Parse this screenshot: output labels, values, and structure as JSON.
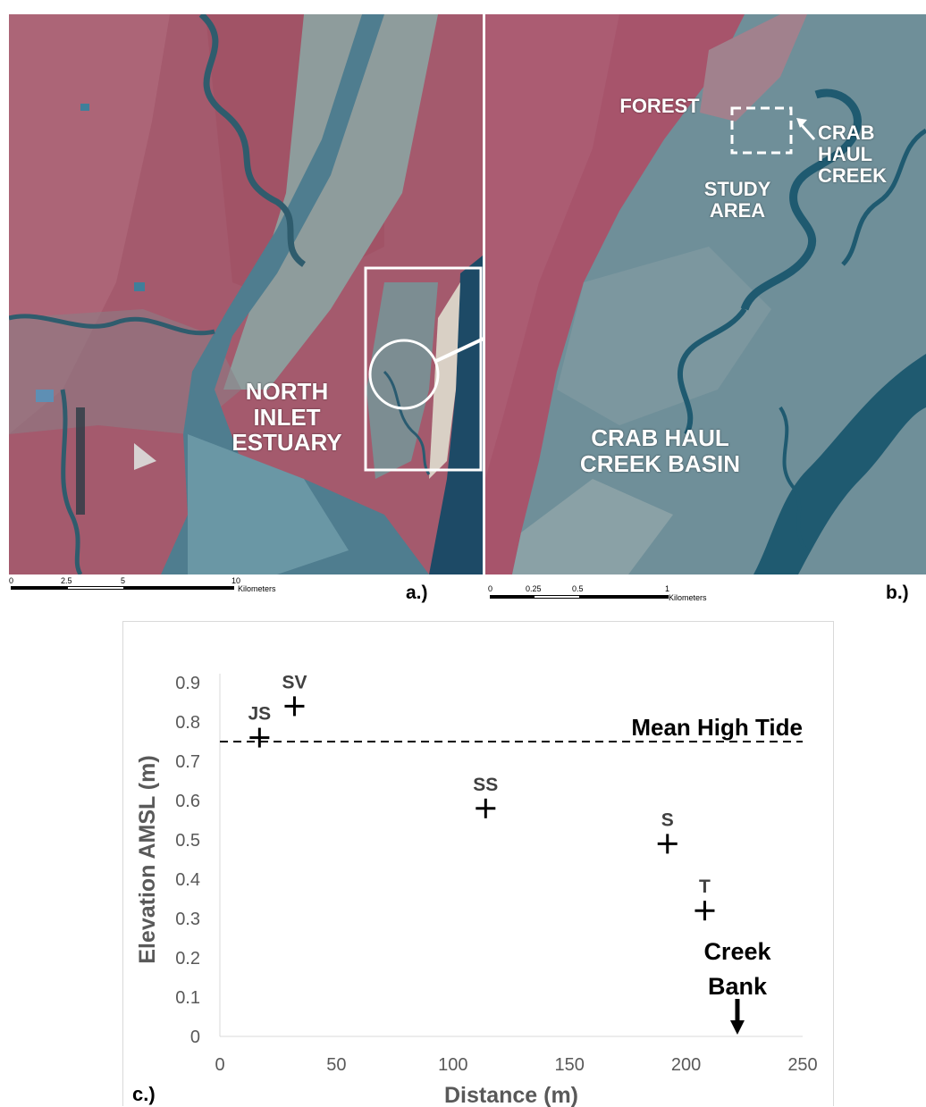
{
  "panel_a": {
    "label": "NORTH\nINLET\nESTUARY",
    "tag": "a.)",
    "scale": {
      "ticks": [
        "0",
        "2.5",
        "5",
        "10"
      ],
      "unit": "Kilometers"
    },
    "colors": {
      "land": "#a45a6d",
      "water": "#4f7d8f",
      "marsh": "#8e9c9c",
      "highlight": "#ffffff"
    }
  },
  "panel_b": {
    "labels": {
      "forest": "FOREST",
      "study_area": "STUDY\nAREA",
      "crab_haul_creek": "CRAB\nHAUL\nCREEK",
      "basin": "CRAB HAUL\nCREEK BASIN"
    },
    "tag": "b.)",
    "scale": {
      "ticks": [
        "0",
        "0.25",
        "0.5",
        "1"
      ],
      "unit": "Kilometers"
    },
    "colors": {
      "forest": "#a7546b",
      "marsh": "#6f8f99",
      "creek": "#1f5a70"
    }
  },
  "chart_data": {
    "type": "scatter",
    "panel_tag": "c.)",
    "xlabel": "Distance (m)",
    "ylabel": "Elevation AMSL (m)",
    "xlim": [
      0,
      250
    ],
    "ylim": [
      0,
      0.9
    ],
    "x_ticks": [
      0,
      50,
      100,
      150,
      200,
      250
    ],
    "y_ticks": [
      0,
      0.1,
      0.2,
      0.3,
      0.4,
      0.5,
      0.6,
      0.7,
      0.8,
      0.9
    ],
    "marker": "plus",
    "points": [
      {
        "label": "JS",
        "x": 17,
        "y": 0.76
      },
      {
        "label": "SV",
        "x": 32,
        "y": 0.84
      },
      {
        "label": "SS",
        "x": 114,
        "y": 0.58
      },
      {
        "label": "S",
        "x": 192,
        "y": 0.49
      },
      {
        "label": "T",
        "x": 208,
        "y": 0.32
      }
    ],
    "reference_line": {
      "label": "Mean High Tide",
      "y": 0.75,
      "style": "dashed"
    },
    "annotation": {
      "text": "Creek\nBank",
      "x": 222,
      "arrow": "down"
    },
    "grid": false,
    "colors": {
      "axis_text": "#595959",
      "markers": "#000000",
      "line": "#000000"
    }
  }
}
